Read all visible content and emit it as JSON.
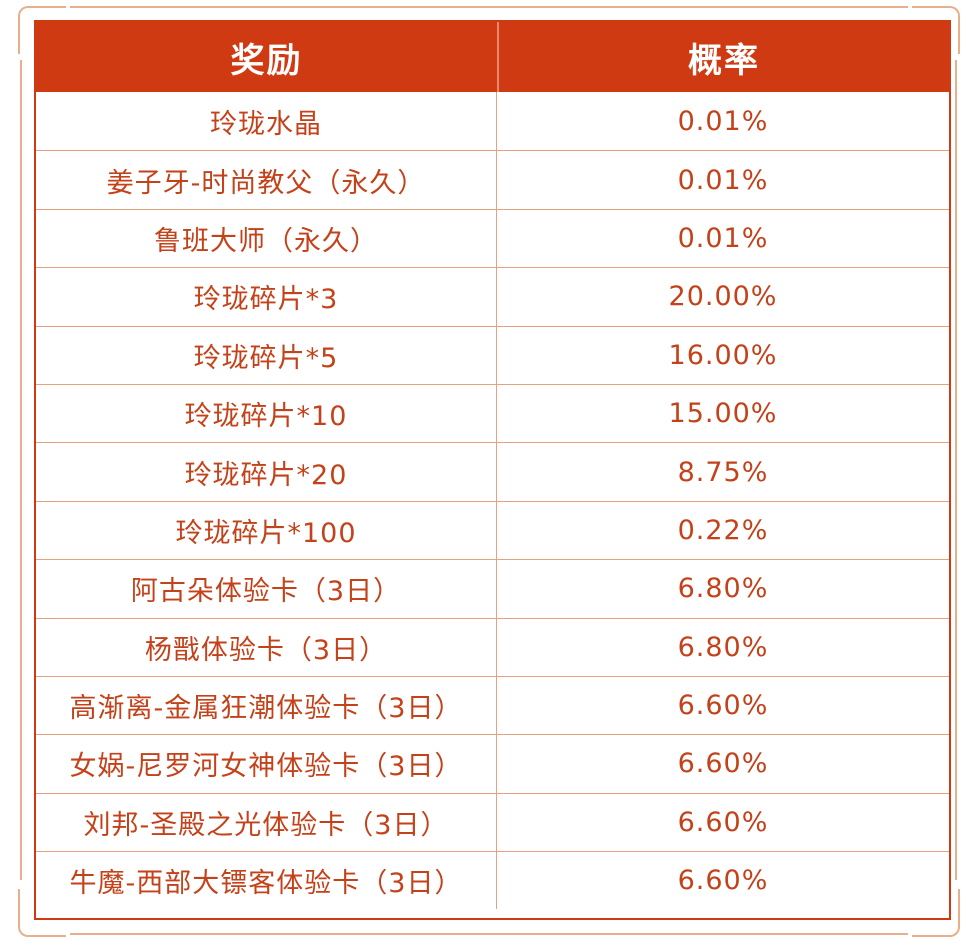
{
  "table": {
    "headers": {
      "reward": "奖励",
      "probability": "概率"
    },
    "rows": [
      {
        "reward": "玲珑水晶",
        "probability": "0.01%"
      },
      {
        "reward": "姜子牙-时尚教父（永久）",
        "probability": "0.01%"
      },
      {
        "reward": "鲁班大师（永久）",
        "probability": "0.01%"
      },
      {
        "reward": "玲珑碎片*3",
        "probability": "20.00%"
      },
      {
        "reward": "玲珑碎片*5",
        "probability": "16.00%"
      },
      {
        "reward": "玲珑碎片*10",
        "probability": "15.00%"
      },
      {
        "reward": "玲珑碎片*20",
        "probability": "8.75%"
      },
      {
        "reward": "玲珑碎片*100",
        "probability": "0.22%"
      },
      {
        "reward": "阿古朵体验卡（3日）",
        "probability": "6.80%"
      },
      {
        "reward": "杨戬体验卡（3日）",
        "probability": "6.80%"
      },
      {
        "reward": "高渐离-金属狂潮体验卡（3日）",
        "probability": "6.60%"
      },
      {
        "reward": "女娲-尼罗河女神体验卡（3日）",
        "probability": "6.60%"
      },
      {
        "reward": "刘邦-圣殿之光体验卡（3日）",
        "probability": "6.60%"
      },
      {
        "reward": "牛魔-西部大镖客体验卡（3日）",
        "probability": "6.60%"
      }
    ]
  },
  "colors": {
    "header_bg": "#cf3a12",
    "header_text": "#ffffff",
    "cell_text": "#c4421a",
    "grid_line": "#e7a080",
    "frame": "#e7b08c"
  }
}
